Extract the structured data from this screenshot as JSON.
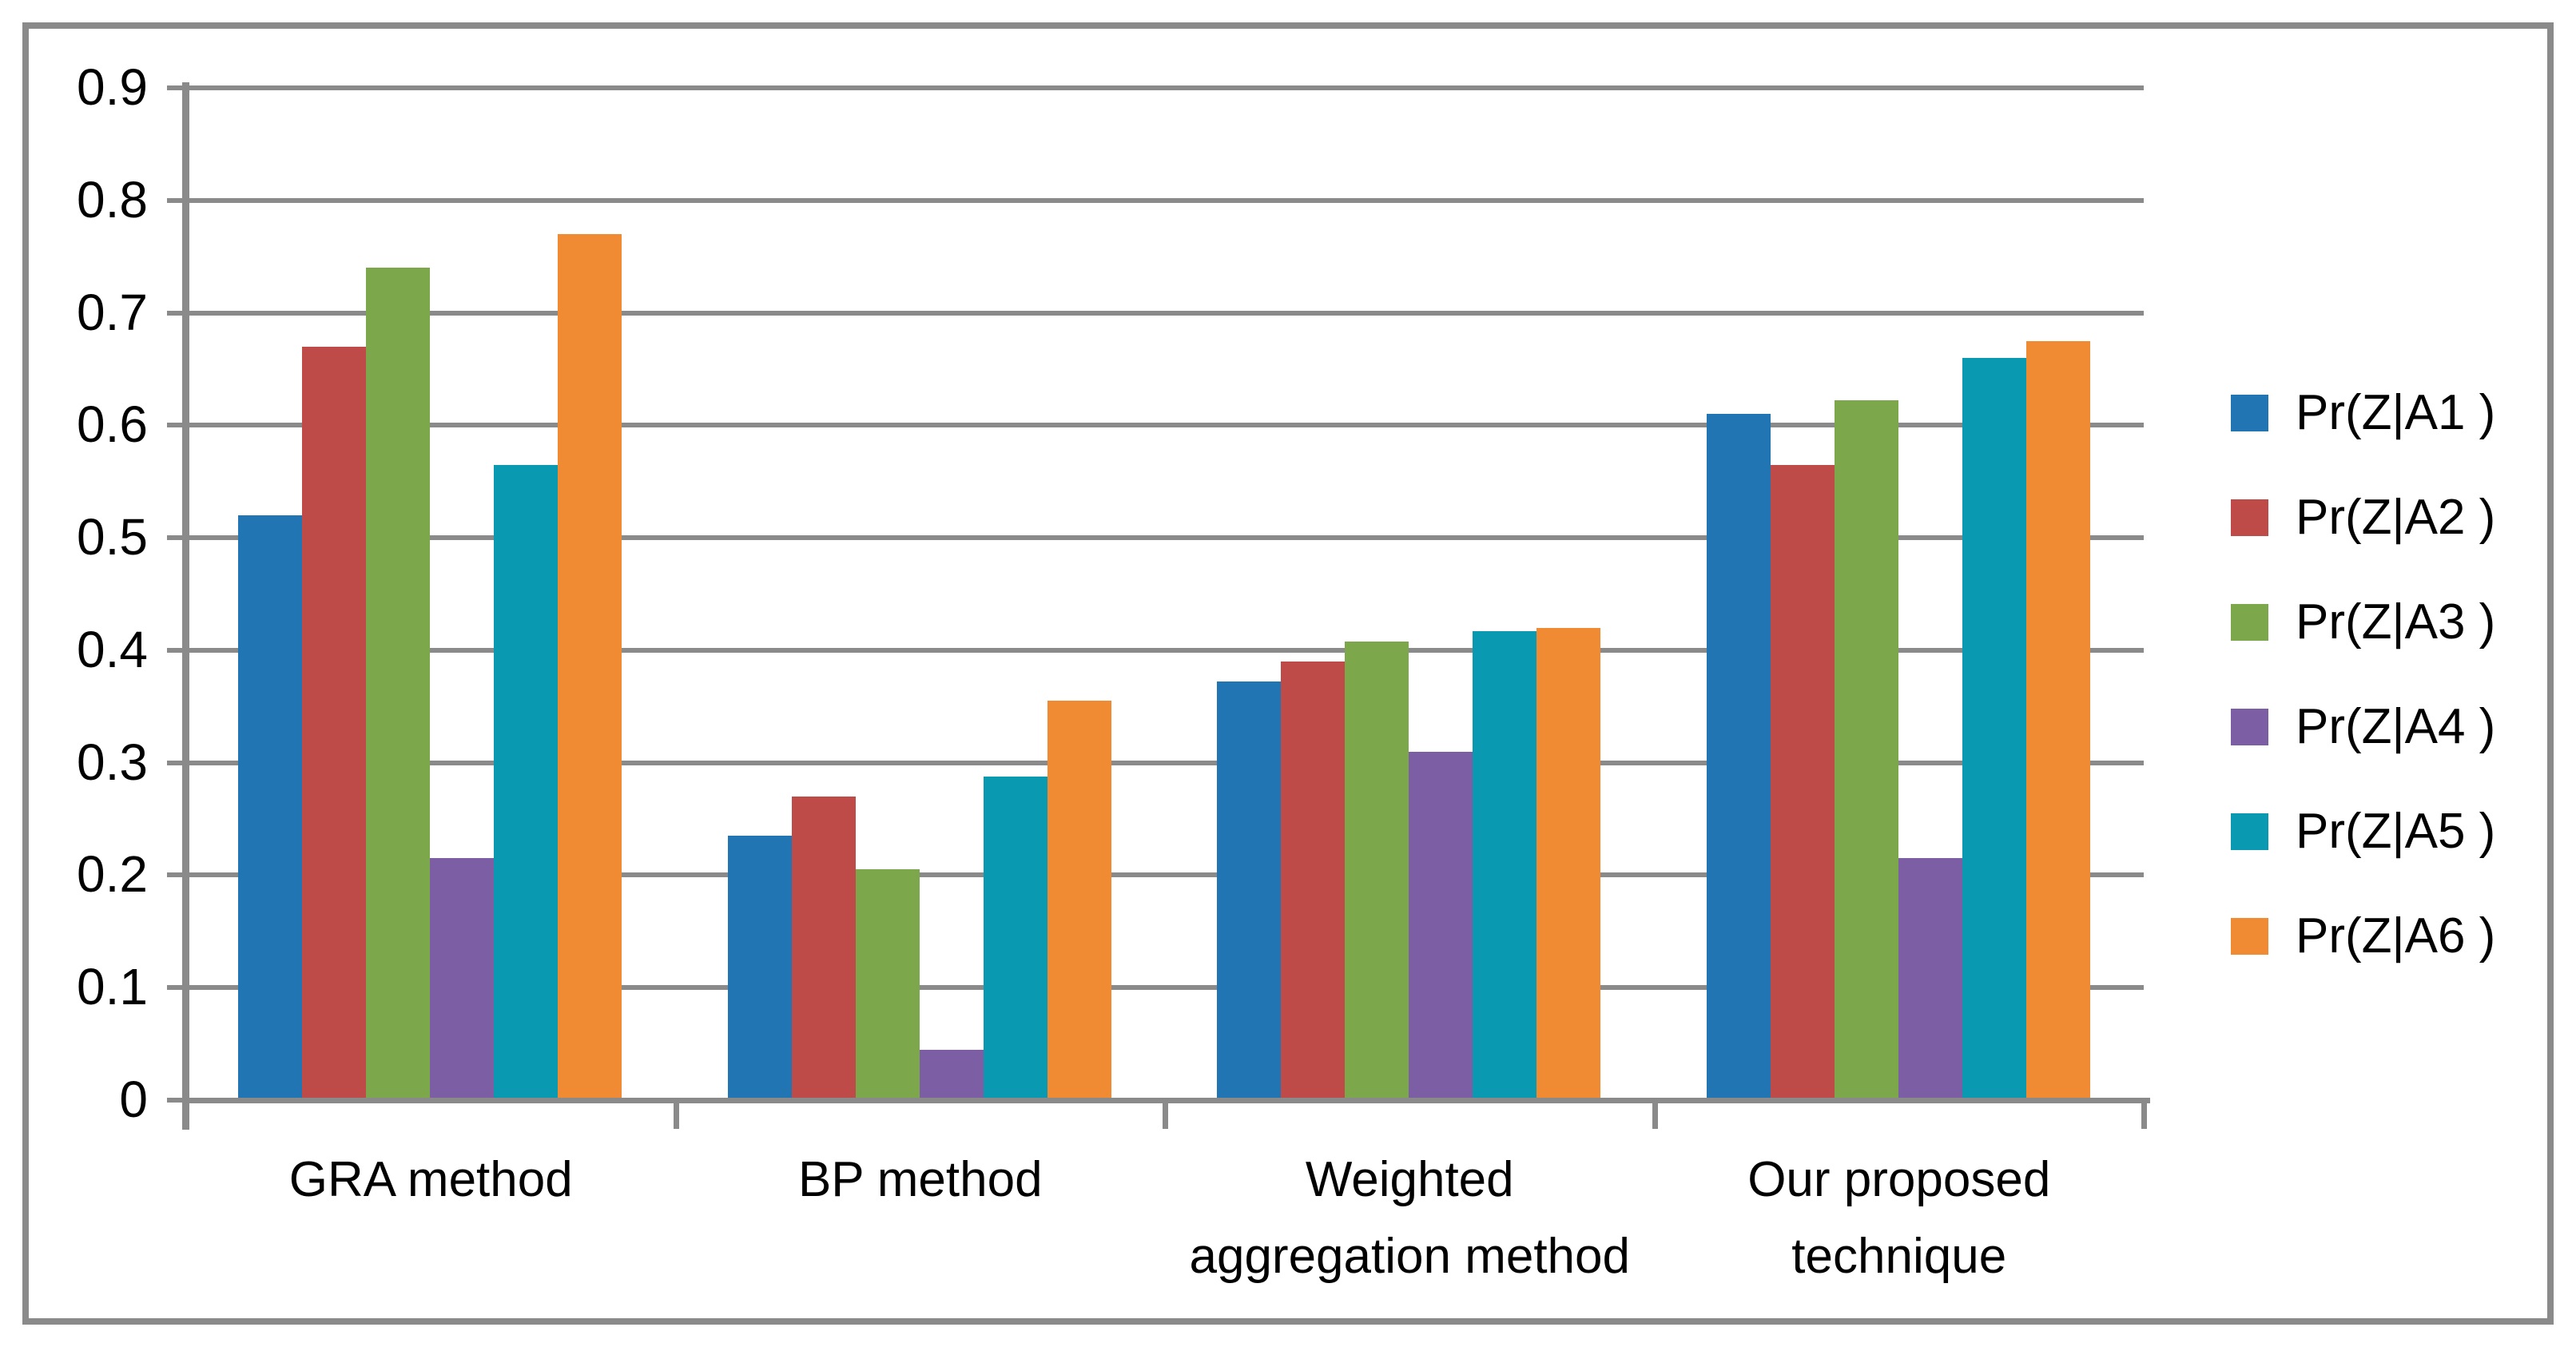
{
  "figure": {
    "background_color": "#ffffff",
    "border_color": "#8a8a8a",
    "gridline_color": "#8a8a8a",
    "axis_color": "#8a8a8a",
    "text_color": "#000000"
  },
  "chart_data": {
    "type": "bar",
    "title": "",
    "xlabel": "",
    "ylabel": "",
    "ylim": [
      0,
      0.9
    ],
    "grid": "horizontal",
    "legend_position": "right",
    "categories": [
      "GRA method",
      "BP method",
      "Weighted aggregation method",
      "Our proposed technique"
    ],
    "category_lines": [
      [
        "GRA method"
      ],
      [
        "BP method"
      ],
      [
        "Weighted",
        "aggregation method"
      ],
      [
        "Our proposed",
        "technique"
      ]
    ],
    "yticks": [
      {
        "value": 0.0,
        "label": "0"
      },
      {
        "value": 0.1,
        "label": "0.1"
      },
      {
        "value": 0.2,
        "label": "0.2"
      },
      {
        "value": 0.3,
        "label": "0.3"
      },
      {
        "value": 0.4,
        "label": "0.4"
      },
      {
        "value": 0.5,
        "label": "0.5"
      },
      {
        "value": 0.6,
        "label": "0.6"
      },
      {
        "value": 0.7,
        "label": "0.7"
      },
      {
        "value": 0.8,
        "label": "0.8"
      },
      {
        "value": 0.9,
        "label": "0.9"
      }
    ],
    "series": [
      {
        "name": "Pr(Z|A1 )",
        "color": "#2175b2",
        "values": [
          0.52,
          0.235,
          0.372,
          0.61
        ]
      },
      {
        "name": "Pr(Z|A2 )",
        "color": "#bf4b48",
        "values": [
          0.67,
          0.27,
          0.39,
          0.565
        ]
      },
      {
        "name": "Pr(Z|A3 )",
        "color": "#7ca74a",
        "values": [
          0.74,
          0.205,
          0.408,
          0.622
        ]
      },
      {
        "name": "Pr(Z|A4 )",
        "color": "#7b5ea3",
        "values": [
          0.215,
          0.045,
          0.31,
          0.215
        ]
      },
      {
        "name": "Pr(Z|A5 )",
        "color": "#0999b0",
        "values": [
          0.565,
          0.288,
          0.417,
          0.66
        ]
      },
      {
        "name": "Pr(Z|A6 )",
        "color": "#f08a33",
        "values": [
          0.77,
          0.355,
          0.42,
          0.675
        ]
      }
    ]
  }
}
